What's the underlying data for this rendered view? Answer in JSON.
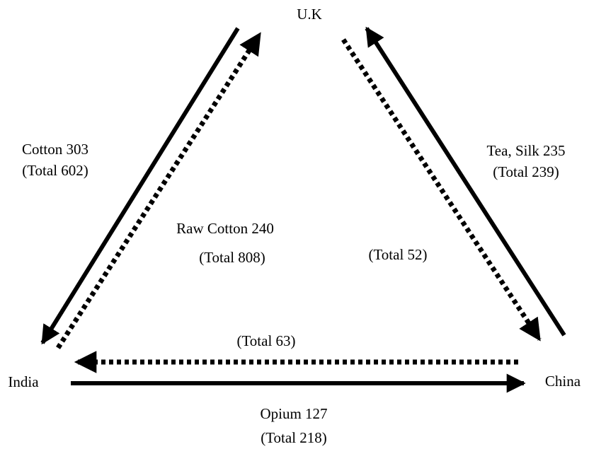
{
  "nodes": [
    "U.K",
    "India",
    "China"
  ],
  "labels": [
    [
      "Cotton 303",
      "(Total 602)"
    ],
    [
      "Raw Cotton 240",
      "(Total 808)"
    ],
    [
      "(Total 52)"
    ],
    [
      "Tea, Silk 235",
      "(Total 239)"
    ],
    [
      "(Total 63)"
    ],
    [
      "Opium 127",
      "(Total 218)"
    ]
  ]
}
